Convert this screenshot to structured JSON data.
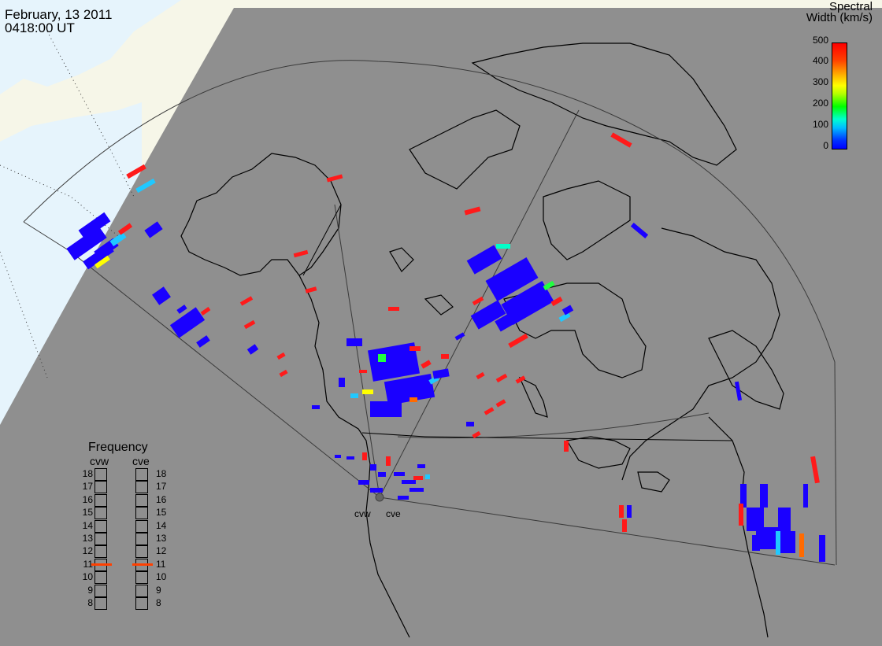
{
  "header": {
    "date": "February, 13 2011",
    "time": "0418:00 UT"
  },
  "colorbar": {
    "title_line1": "Spectral",
    "title_line2": "Width (km/s)",
    "ticks": [
      "500",
      "400",
      "300",
      "200",
      "100",
      "0"
    ],
    "range": [
      0,
      500
    ],
    "colors": [
      "#0000ff",
      "#00bfff",
      "#00ff00",
      "#ffff00",
      "#ffa000",
      "#ff0000"
    ]
  },
  "frequency_panel": {
    "title": "Frequency",
    "radars": [
      {
        "name": "cvw",
        "value": 11
      },
      {
        "name": "cve",
        "value": 11
      }
    ],
    "scale": [
      "18",
      "17",
      "16",
      "15",
      "14",
      "13",
      "12",
      "11",
      "10",
      "9",
      "8"
    ]
  },
  "radars": [
    {
      "label": "cvw"
    },
    {
      "label": "cve"
    }
  ],
  "colors": {
    "ocean_gray": "#8f8f8f",
    "day_region": "#f6f6e8",
    "day_ocean": "#e6f4fc",
    "coastline": "#000000",
    "low_width": "#1a00ff",
    "high_width": "#ff0000"
  }
}
